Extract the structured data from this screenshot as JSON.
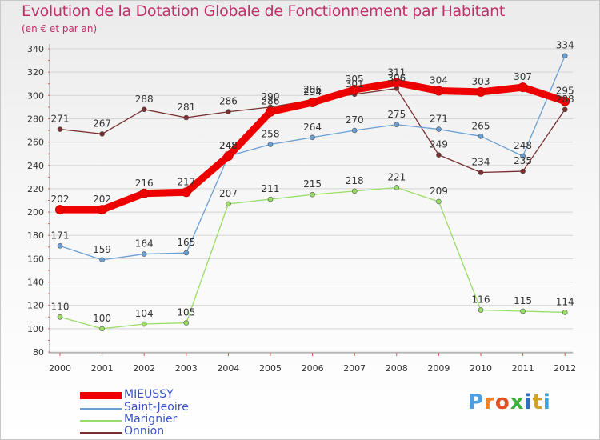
{
  "header": {
    "title": "Evolution de la Dotation Globale de Fonctionnement par Habitant",
    "subtitle": "(en € et par an)"
  },
  "brand": {
    "letters": [
      "P",
      "r",
      "o",
      "x",
      "i",
      "t",
      "i"
    ],
    "colors": [
      "#4aa0e0",
      "#f08020",
      "#e05020",
      "#40b040",
      "#3070c0",
      "#d0a020",
      "#40a0d0"
    ]
  },
  "chart_data": {
    "type": "line",
    "categories": [
      "2000",
      "2001",
      "2002",
      "2003",
      "2004",
      "2005",
      "2006",
      "2007",
      "2008",
      "2009",
      "2010",
      "2011",
      "2012"
    ],
    "ylim": [
      80,
      340
    ],
    "yticks": [
      80,
      100,
      120,
      140,
      160,
      180,
      200,
      220,
      240,
      260,
      280,
      300,
      320,
      340
    ],
    "grid": "horizontal",
    "legend_position": "bottom-left",
    "series": [
      {
        "name": "MIEUSSY",
        "color": "#ee0000",
        "values": [
          202,
          202,
          216,
          217,
          248,
          286,
          294,
          305,
          311,
          304,
          303,
          307,
          295
        ]
      },
      {
        "name": "Saint-Jeoire",
        "color": "#6a9fd4",
        "values": [
          171,
          159,
          164,
          165,
          248,
          258,
          264,
          270,
          275,
          271,
          265,
          248,
          334
        ]
      },
      {
        "name": "Marignier",
        "color": "#99dd66",
        "values": [
          110,
          100,
          104,
          105,
          207,
          211,
          215,
          218,
          221,
          209,
          116,
          115,
          114
        ]
      },
      {
        "name": "Onnion",
        "color": "#7a3030",
        "values": [
          271,
          267,
          288,
          281,
          286,
          290,
          296,
          301,
          306,
          249,
          234,
          235,
          288
        ]
      }
    ]
  }
}
